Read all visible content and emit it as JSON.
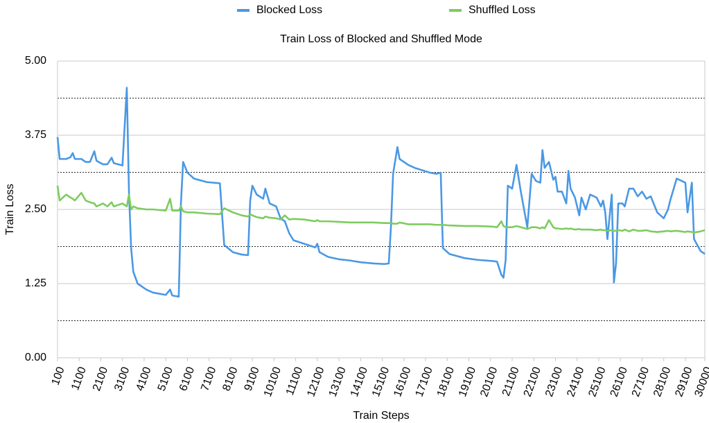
{
  "chart_data": {
    "type": "line",
    "title": "Train Loss of Blocked and Shuffled Mode",
    "x_label": "Train Steps",
    "y_label": "Train Loss",
    "legend_position": "top",
    "grid": true,
    "xlim": [
      100,
      30000
    ],
    "ylim": [
      0,
      5
    ],
    "xticks": [
      100,
      1100,
      2100,
      3100,
      4100,
      5100,
      6100,
      7100,
      8100,
      9100,
      10100,
      11100,
      12100,
      13100,
      14100,
      15100,
      16100,
      17100,
      18100,
      19100,
      20100,
      21100,
      22100,
      23100,
      24100,
      25100,
      26100,
      27100,
      28100,
      29100,
      30000
    ],
    "yticks": [
      {
        "value": 0,
        "label": "0.00"
      },
      1.25,
      {
        "value": 2.5,
        "label": "2.50"
      },
      3.75,
      {
        "value": 5,
        "label": "5.00"
      }
    ],
    "yticks_minor": [
      0.625,
      1.875,
      3.125,
      4.375
    ],
    "x": [
      100,
      200,
      500,
      700,
      800,
      900,
      1200,
      1400,
      1600,
      1800,
      1900,
      2200,
      2400,
      2600,
      2700,
      3100,
      3300,
      3400,
      3500,
      3600,
      3800,
      4200,
      4500,
      4800,
      5100,
      5300,
      5400,
      5700,
      5800,
      5900,
      6100,
      6400,
      7000,
      7600,
      7800,
      8200,
      8600,
      8900,
      9000,
      9100,
      9300,
      9600,
      9700,
      9900,
      10200,
      10400,
      10600,
      10800,
      11000,
      11500,
      12000,
      12100,
      12200,
      12600,
      13100,
      13600,
      14100,
      14700,
      15200,
      15400,
      15500,
      15600,
      15800,
      15900,
      16300,
      16600,
      17300,
      17600,
      17800,
      17900,
      18200,
      18900,
      19500,
      20200,
      20400,
      20600,
      20700,
      20800,
      20900,
      21100,
      21300,
      21500,
      21800,
      22000,
      22200,
      22400,
      22500,
      22600,
      22800,
      23000,
      23100,
      23200,
      23400,
      23600,
      23700,
      23800,
      24000,
      24200,
      24300,
      24500,
      24700,
      25000,
      25200,
      25300,
      25400,
      25500,
      25700,
      25800,
      25900,
      26000,
      26200,
      26300,
      26500,
      26700,
      26900,
      27100,
      27300,
      27500,
      27800,
      28100,
      28300,
      28400,
      28700,
      29100,
      29200,
      29400,
      29500,
      29800,
      30000
    ],
    "series": [
      {
        "name": "Blocked Loss",
        "color": "#4a98e4",
        "values": [
          3.72,
          3.35,
          3.35,
          3.38,
          3.45,
          3.35,
          3.35,
          3.3,
          3.3,
          3.48,
          3.32,
          3.26,
          3.26,
          3.37,
          3.28,
          3.24,
          4.55,
          2.8,
          1.85,
          1.45,
          1.25,
          1.15,
          1.1,
          1.08,
          1.06,
          1.15,
          1.05,
          1.03,
          2.6,
          3.3,
          3.12,
          3.02,
          2.96,
          2.94,
          1.9,
          1.78,
          1.74,
          1.73,
          2.65,
          2.9,
          2.75,
          2.68,
          2.85,
          2.6,
          2.55,
          2.35,
          2.3,
          2.1,
          1.98,
          1.92,
          1.86,
          1.92,
          1.78,
          1.7,
          1.66,
          1.64,
          1.61,
          1.59,
          1.58,
          1.59,
          2.2,
          3.1,
          3.55,
          3.35,
          3.25,
          3.2,
          3.12,
          3.1,
          3.12,
          1.85,
          1.75,
          1.68,
          1.65,
          1.63,
          1.62,
          1.4,
          1.35,
          1.65,
          2.9,
          2.85,
          3.25,
          2.8,
          2.2,
          3.1,
          2.98,
          2.95,
          3.5,
          3.2,
          3.3,
          3.0,
          3.05,
          2.8,
          2.8,
          2.6,
          3.15,
          2.85,
          2.7,
          2.4,
          2.7,
          2.5,
          2.75,
          2.7,
          2.55,
          2.65,
          2.45,
          2.0,
          2.75,
          1.27,
          1.6,
          2.6,
          2.6,
          2.55,
          2.85,
          2.85,
          2.72,
          2.8,
          2.68,
          2.72,
          2.45,
          2.35,
          2.5,
          2.65,
          3.02,
          2.95,
          2.45,
          2.95,
          2.0,
          1.8,
          1.75
        ]
      },
      {
        "name": "Shuffled Loss",
        "color": "#7dcc5f",
        "values": [
          2.9,
          2.65,
          2.75,
          2.7,
          2.68,
          2.65,
          2.78,
          2.65,
          2.62,
          2.6,
          2.55,
          2.6,
          2.55,
          2.62,
          2.55,
          2.6,
          2.55,
          2.75,
          2.5,
          2.55,
          2.52,
          2.5,
          2.5,
          2.49,
          2.48,
          2.68,
          2.48,
          2.48,
          2.55,
          2.47,
          2.45,
          2.45,
          2.43,
          2.42,
          2.52,
          2.45,
          2.4,
          2.38,
          2.42,
          2.4,
          2.37,
          2.35,
          2.38,
          2.36,
          2.35,
          2.33,
          2.4,
          2.33,
          2.34,
          2.33,
          2.3,
          2.32,
          2.3,
          2.3,
          2.29,
          2.28,
          2.28,
          2.28,
          2.27,
          2.27,
          2.27,
          2.26,
          2.26,
          2.28,
          2.25,
          2.25,
          2.25,
          2.24,
          2.24,
          2.24,
          2.23,
          2.22,
          2.22,
          2.21,
          2.2,
          2.3,
          2.22,
          2.2,
          2.2,
          2.2,
          2.22,
          2.2,
          2.17,
          2.2,
          2.2,
          2.18,
          2.2,
          2.18,
          2.32,
          2.2,
          2.18,
          2.18,
          2.17,
          2.18,
          2.17,
          2.18,
          2.16,
          2.17,
          2.16,
          2.16,
          2.16,
          2.15,
          2.16,
          2.15,
          2.15,
          2.14,
          2.15,
          2.14,
          2.14,
          2.15,
          2.14,
          2.16,
          2.13,
          2.16,
          2.14,
          2.14,
          2.15,
          2.13,
          2.12,
          2.13,
          2.14,
          2.13,
          2.14,
          2.12,
          2.13,
          2.12,
          2.11,
          2.13,
          2.15
        ]
      }
    ]
  }
}
